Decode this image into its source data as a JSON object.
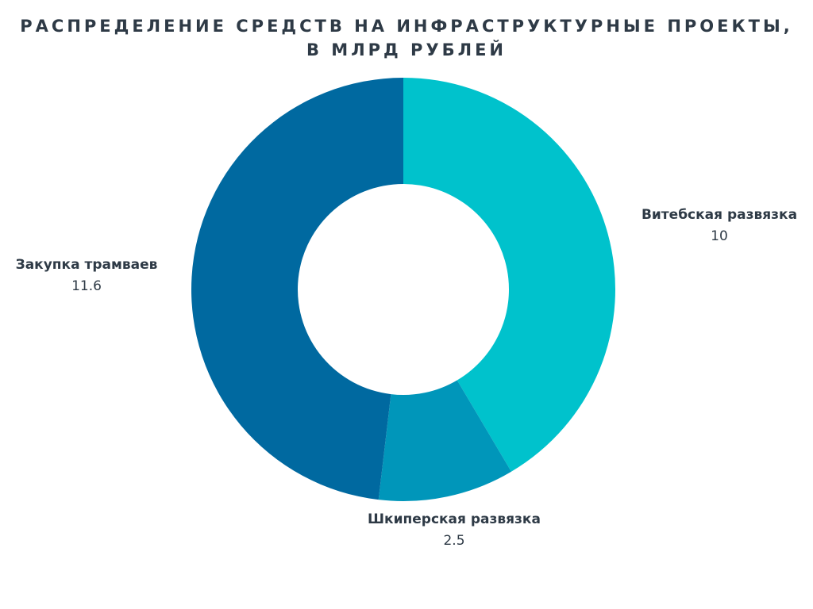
{
  "chart_data": {
    "type": "pie",
    "donut": true,
    "title_lines": [
      "РАСПРЕДЕЛЕНИЕ СРЕДСТВ НА ИНФРАСТРУКТУРНЫЕ ПРОЕКТЫ,",
      "В МЛРД РУБЛЕЙ"
    ],
    "slices": [
      {
        "label": "Витебская развязка",
        "value": 10,
        "display_value": "10",
        "color": "#00c2cc"
      },
      {
        "label": "Шкиперская развязка",
        "value": 2.5,
        "display_value": "2.5",
        "color": "#0096ba"
      },
      {
        "label": "Закупка трамваев",
        "value": 11.6,
        "display_value": "11.6",
        "color": "#0069a0"
      }
    ],
    "legend": "none"
  }
}
